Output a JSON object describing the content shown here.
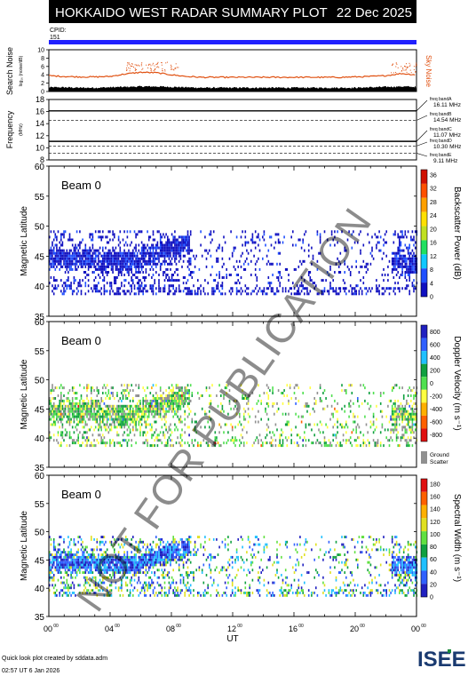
{
  "header": {
    "title": "HOKKAIDO WEST RADAR SUMMARY PLOT",
    "date": "22 Dec 2025",
    "cpid_label": "CPID:",
    "cpid_value": "151"
  },
  "watermark": "NOT FOR PUBLICATION",
  "credits": {
    "line1": "Quick look plot created by sddata.adm",
    "line2": "02:57 UT 6 Jan 2026"
  },
  "logo": {
    "text": "ISEE",
    "accent": "#1a8a3a"
  },
  "colors": {
    "cpid_bar": "#2020ff",
    "noise_search": "#000000",
    "noise_sky": "#e05010",
    "power_scale": [
      "#1010c0",
      "#2050ff",
      "#10c8ff",
      "#20e060",
      "#c0e020",
      "#ffe000",
      "#ffa000",
      "#ff5000",
      "#d01000"
    ],
    "velocity_scale": [
      "#2020c0",
      "#3060ff",
      "#20c0ff",
      "#10a040",
      "#50e050",
      "#ffff40",
      "#ffb000",
      "#ff6000",
      "#e01010"
    ],
    "width_scale": [
      "#2020c0",
      "#3060ff",
      "#20c0ff",
      "#10a040",
      "#60e040",
      "#e0e020",
      "#ffb000",
      "#ff6000",
      "#e01010"
    ],
    "ground_scatter": "#909090"
  },
  "chart_data": [
    {
      "type": "line",
      "panel": "noise",
      "ylabel": "Search Noise",
      "ylabel_sub": "log₁₀ (noise/dB)",
      "right_label": "Sky Noise",
      "ylim": [
        0,
        10
      ],
      "yticks": [
        0,
        2,
        4,
        6,
        8,
        10
      ],
      "series": [
        {
          "name": "Search Noise",
          "x_hours": [
            0,
            1,
            2,
            3,
            4,
            5,
            6,
            7,
            8,
            9,
            10,
            11,
            12,
            13,
            14,
            15,
            16,
            17,
            18,
            19,
            20,
            21,
            22,
            23,
            24
          ],
          "values": [
            1.0,
            1.0,
            0.9,
            0.9,
            1.0,
            1.1,
            1.2,
            1.2,
            1.1,
            1.0,
            0.9,
            0.9,
            0.9,
            0.9,
            0.9,
            0.9,
            0.9,
            0.9,
            0.9,
            0.9,
            0.9,
            1.0,
            1.1,
            1.2,
            1.1
          ]
        },
        {
          "name": "Sky Noise",
          "x_hours": [
            0,
            1,
            2,
            3,
            4,
            5,
            6,
            7,
            8,
            9,
            10,
            11,
            12,
            13,
            14,
            15,
            16,
            17,
            18,
            19,
            20,
            21,
            22,
            23,
            24
          ],
          "values": [
            3.8,
            3.6,
            3.5,
            3.5,
            3.6,
            4.2,
            4.6,
            4.5,
            4.0,
            3.6,
            3.4,
            3.4,
            3.4,
            3.4,
            3.4,
            3.4,
            3.4,
            3.4,
            3.4,
            3.4,
            3.5,
            3.6,
            3.8,
            4.3,
            4.0
          ]
        }
      ]
    },
    {
      "type": "line",
      "panel": "frequency",
      "ylabel": "Frequency",
      "ylabel_sub": "(MHz)",
      "ylim": [
        8,
        18
      ],
      "yticks": [
        8,
        10,
        12,
        14,
        16,
        18
      ],
      "bands": [
        {
          "name": "freq bandA",
          "value": "16.11 MHz",
          "mhz": 16.11
        },
        {
          "name": "freq bandB",
          "value": "14.54 MHz",
          "mhz": 14.54
        },
        {
          "name": "freq bandC",
          "value": "11.07 MHz",
          "mhz": 11.07
        },
        {
          "name": "freq bandD",
          "value": "10.30 MHz",
          "mhz": 10.3
        },
        {
          "name": "freq bandE",
          "value": "9.11 MHz",
          "mhz": 9.11
        }
      ],
      "operating_mhz": [
        16.11,
        11.07
      ]
    },
    {
      "type": "heatmap",
      "panel": "power",
      "beam": "Beam  0",
      "ylabel": "Magnetic Latitude",
      "ylim": [
        35,
        60
      ],
      "yticks": [
        35,
        40,
        45,
        50,
        55,
        60
      ],
      "colorbar_label": "Backscatter Power (dB)",
      "colorbar_ticks": [
        "0",
        "4",
        "8",
        "12",
        "16",
        "20",
        "24",
        "28",
        "32",
        "36"
      ],
      "lat_range": [
        38.5,
        49
      ],
      "echo_band": [
        [
          0,
          44.5
        ],
        [
          2,
          44.2
        ],
        [
          4,
          44.0
        ],
        [
          6,
          44.5
        ],
        [
          8,
          46.5
        ],
        [
          9,
          47.5
        ],
        [
          22.5,
          44.5
        ],
        [
          24,
          43.5
        ]
      ]
    },
    {
      "type": "heatmap",
      "panel": "velocity",
      "beam": "Beam  0",
      "ylabel": "Magnetic Latitude",
      "ylim": [
        35,
        60
      ],
      "yticks": [
        35,
        40,
        45,
        50,
        55,
        60
      ],
      "colorbar_label": "Doppler Velocity (m s⁻¹)",
      "colorbar_ticks": [
        "800",
        "600",
        "400",
        "200",
        "0",
        "-200",
        "-400",
        "-600",
        "-800"
      ],
      "extra_label": [
        "Ground",
        "Scatter"
      ],
      "lat_range": [
        38.5,
        49
      ]
    },
    {
      "type": "heatmap",
      "panel": "width",
      "beam": "Beam  0",
      "ylabel": "Magnetic Latitude",
      "ylim": [
        35,
        60
      ],
      "yticks": [
        35,
        40,
        45,
        50,
        55,
        60
      ],
      "colorbar_label": "Spectral Width (m s⁻¹)",
      "colorbar_ticks": [
        "0",
        "20",
        "40",
        "60",
        "80",
        "100",
        "120",
        "140",
        "160",
        "180"
      ],
      "lat_range": [
        38.5,
        49
      ],
      "xlabel": "UT",
      "xticks": [
        "00",
        "04",
        "08",
        "12",
        "16",
        "20",
        "00"
      ],
      "xtick_sup": "00",
      "xlim_hours": [
        0,
        24
      ]
    }
  ]
}
